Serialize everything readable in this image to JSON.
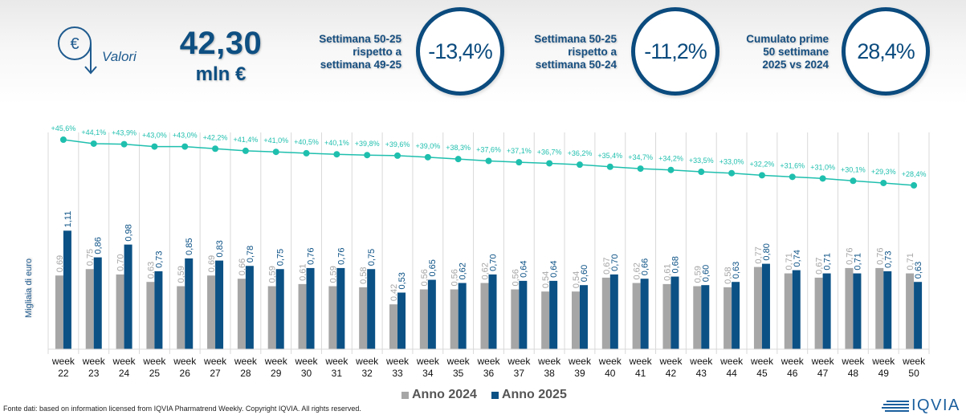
{
  "header": {
    "icon": "euro-down-icon",
    "valori_label": "Valori",
    "total_value": "42,30",
    "total_unit": "mln €",
    "kpis": [
      {
        "caption": [
          "Settimana 50-25",
          "rispetto a",
          "settimana 49-25"
        ],
        "value": "-13,4%"
      },
      {
        "caption": [
          "Settimana 50-25",
          "rispetto a",
          "settimana 50-24"
        ],
        "value": "-11,2%"
      },
      {
        "caption": [
          "Cumulato prime",
          "50 settimane",
          "2025 vs 2024"
        ],
        "value": "28,4%"
      }
    ]
  },
  "colors": {
    "anno_2024": "#a6a6a6",
    "anno_2025": "#0b5185",
    "line": "#1fbfae",
    "kpi_blue": "#0b4b7e"
  },
  "chart_data": {
    "type": "bar",
    "title": "",
    "xlabel": "",
    "ylabel": "Migliaia di euro",
    "categories": [
      "week 22",
      "week 23",
      "week 24",
      "week 25",
      "week 26",
      "week 27",
      "week 28",
      "week 29",
      "week 30",
      "week 31",
      "week 32",
      "week 33",
      "week 34",
      "week 35",
      "week 36",
      "week 37",
      "week 38",
      "week 39",
      "week 40",
      "week 41",
      "week 42",
      "week 43",
      "week 44",
      "week 45",
      "week 46",
      "week 47",
      "week 48",
      "week 49",
      "week 50"
    ],
    "series": [
      {
        "name": "Anno 2024",
        "values": [
          0.69,
          0.75,
          0.7,
          0.63,
          0.59,
          0.69,
          0.66,
          0.59,
          0.61,
          0.59,
          0.58,
          0.42,
          0.56,
          0.56,
          0.62,
          0.56,
          0.54,
          0.54,
          0.67,
          0.62,
          0.61,
          0.59,
          0.58,
          0.77,
          0.71,
          0.67,
          0.76,
          0.76,
          0.71
        ]
      },
      {
        "name": "Anno 2025",
        "values": [
          1.11,
          0.86,
          0.98,
          0.73,
          0.85,
          0.83,
          0.78,
          0.75,
          0.76,
          0.76,
          0.75,
          0.53,
          0.65,
          0.62,
          0.7,
          0.64,
          0.64,
          0.6,
          0.7,
          0.66,
          0.68,
          0.6,
          0.63,
          0.8,
          0.74,
          0.71,
          0.71,
          0.73,
          0.63
        ]
      }
    ],
    "line_series": {
      "name": "Cumulato % 2025 vs 2024",
      "values": [
        45.6,
        44.1,
        43.9,
        43.0,
        43.0,
        42.2,
        41.4,
        41.0,
        40.5,
        40.1,
        39.8,
        39.6,
        39.0,
        38.3,
        37.6,
        37.1,
        36.7,
        36.2,
        35.4,
        34.7,
        34.2,
        33.5,
        33.0,
        32.2,
        31.6,
        31.0,
        30.1,
        29.3,
        28.4
      ],
      "labels": [
        "+45,6%",
        "+44,1%",
        "+43,9%",
        "+43,0%",
        "+43,0%",
        "+42,2%",
        "+41,4%",
        "+41,0%",
        "+40,5%",
        "+40,1%",
        "+39,8%",
        "+39,6%",
        "+39,0%",
        "+38,3%",
        "+37,6%",
        "+37,1%",
        "+36,7%",
        "+36,2%",
        "+35,4%",
        "+34,7%",
        "+34,2%",
        "+33,5%",
        "+33,0%",
        "+32,2%",
        "+31,6%",
        "+31,0%",
        "+30,1%",
        "+29,3%",
        "+28,4%"
      ]
    },
    "bar_labels_2024": [
      "0,69",
      "0,75",
      "0,70",
      "0,63",
      "0,59",
      "0,69",
      "0,66",
      "0,59",
      "0,61",
      "0,59",
      "0,58",
      "0,42",
      "0,56",
      "0,56",
      "0,62",
      "0,56",
      "0,54",
      "0,54",
      "0,67",
      "0,62",
      "0,61",
      "0,59",
      "0,58",
      "0,77",
      "0,71",
      "0,67",
      "0,76",
      "0,76",
      "0,71"
    ],
    "bar_labels_2025": [
      "1,11",
      "0,86",
      "0,98",
      "0,73",
      "0,85",
      "0,83",
      "0,78",
      "0,75",
      "0,76",
      "0,76",
      "0,75",
      "0,53",
      "0,65",
      "0,62",
      "0,70",
      "0,64",
      "0,64",
      "0,60",
      "0,70",
      "0,66",
      "0,68",
      "0,60",
      "0,63",
      "0,80",
      "0,74",
      "0,71",
      "0,71",
      "0,73",
      "0,63"
    ],
    "x_tick_top": "week",
    "x_tick_bottom": [
      "22",
      "23",
      "24",
      "25",
      "26",
      "27",
      "28",
      "29",
      "30",
      "31",
      "32",
      "33",
      "34",
      "35",
      "36",
      "37",
      "38",
      "39",
      "40",
      "41",
      "42",
      "43",
      "44",
      "45",
      "46",
      "47",
      "48",
      "49",
      "50"
    ],
    "grid": "vertical",
    "legend": {
      "placement": "bottom-center",
      "entries": [
        "Anno 2024",
        "Anno 2025"
      ]
    }
  },
  "footer": {
    "source": "Fonte dati: based on information licensed from IQVIA Pharmatrend Weekly. Copyright IQVIA. All rights reserved.",
    "logo_text": "IQVIA"
  }
}
